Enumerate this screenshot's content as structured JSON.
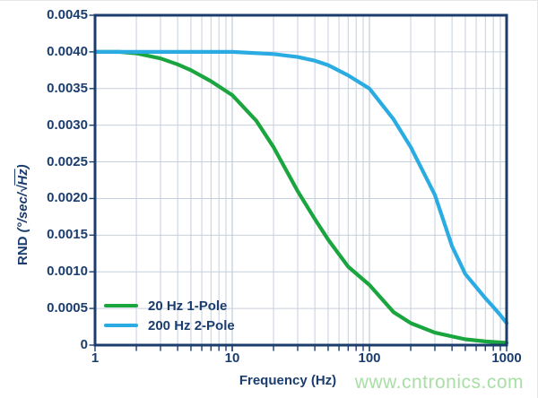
{
  "page": {
    "watermark": "www.cntronics.com"
  },
  "colors": {
    "axis_and_text": "#1b3d6d",
    "gridlines": "#c6cfdc",
    "series_green": "#1aa53e",
    "series_cyan": "#2aace2",
    "watermark": "#a8dfa4",
    "background": "#ffffff"
  },
  "chart_data": {
    "type": "line",
    "title": "",
    "xlabel": "Frequency (Hz)",
    "ylabel": "RND (°/sec/√Hz)",
    "ylabel_parts": {
      "name": "RND",
      "unit_open": " (°/sec/",
      "radical": "√",
      "radicand": "Hz",
      "unit_close": ")"
    },
    "x_scale": "log",
    "y_scale": "linear",
    "xlim": [
      1,
      1000
    ],
    "ylim": [
      0,
      0.0045
    ],
    "x_ticks": [
      1,
      10,
      100,
      1000
    ],
    "y_ticks": [
      0,
      0.0005,
      0.001,
      0.0015,
      0.002,
      0.0025,
      0.003,
      0.0035,
      0.004,
      0.0045
    ],
    "grid": true,
    "legend_position": "bottom-left",
    "series": [
      {
        "name": "20 Hz 1-Pole",
        "color": "#1aa53e",
        "x": [
          1,
          1.5,
          2,
          3,
          4,
          5,
          7,
          10,
          15,
          20,
          30,
          40,
          50,
          70,
          100,
          150,
          200,
          300,
          500,
          700,
          1000
        ],
        "y": [
          0.004,
          0.004,
          0.00398,
          0.00391,
          0.00383,
          0.00375,
          0.0036,
          0.00341,
          0.00306,
          0.0027,
          0.0021,
          0.00172,
          0.00144,
          0.00107,
          0.00082,
          0.00045,
          0.0003,
          0.00017,
          8e-05,
          5e-05,
          3e-05
        ]
      },
      {
        "name": "200 Hz 2-Pole",
        "color": "#2aace2",
        "x": [
          1,
          5,
          10,
          20,
          30,
          40,
          50,
          70,
          100,
          150,
          200,
          300,
          400,
          500,
          600,
          700,
          800,
          900,
          1000
        ],
        "y": [
          0.004,
          0.004,
          0.004,
          0.00397,
          0.00393,
          0.00388,
          0.00382,
          0.00368,
          0.0035,
          0.00308,
          0.0027,
          0.00205,
          0.00135,
          0.00097,
          0.00079,
          0.00064,
          0.00052,
          0.00041,
          0.0003
        ]
      }
    ]
  }
}
